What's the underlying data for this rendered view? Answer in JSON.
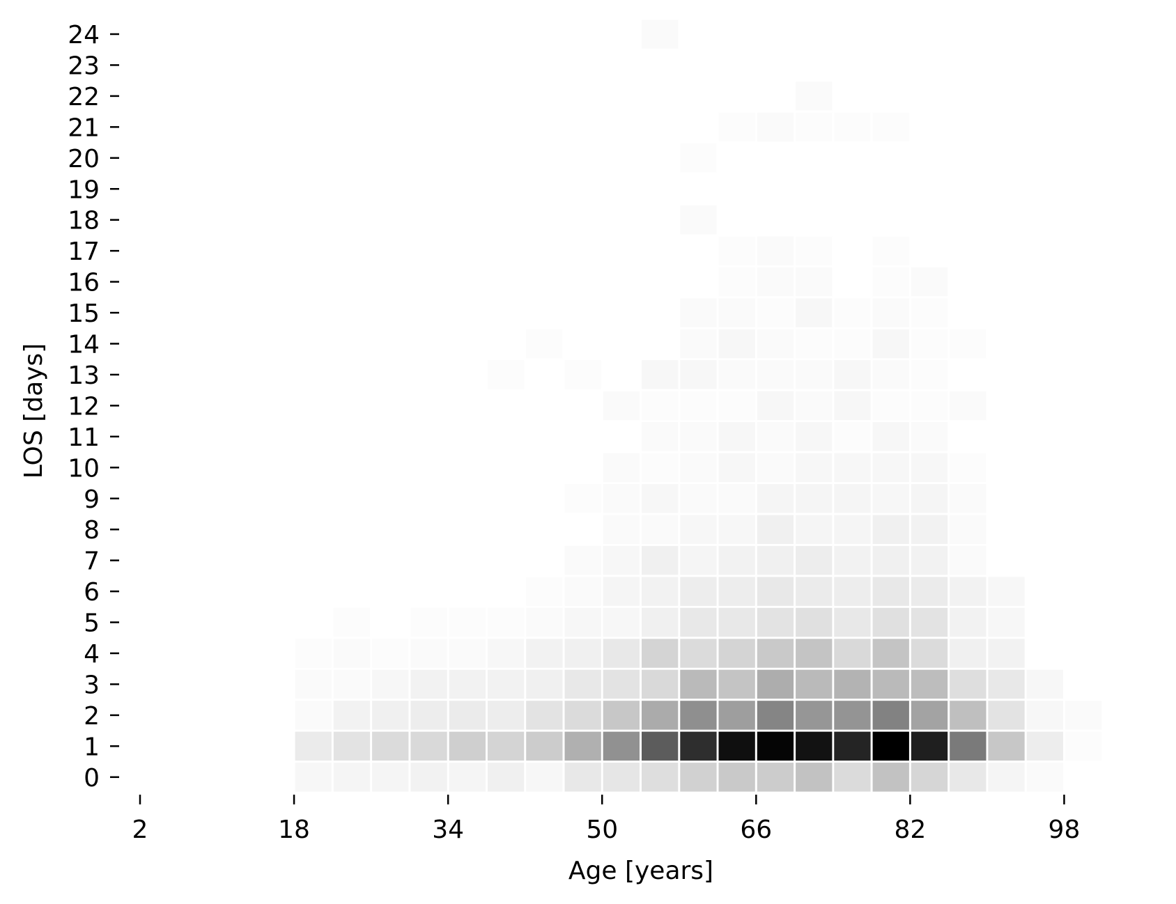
{
  "chart_data": {
    "type": "heatmap",
    "title": "",
    "xlabel": "Age [years]",
    "ylabel": "LOS [days]",
    "x_ticks": [
      2,
      18,
      34,
      50,
      66,
      82,
      98
    ],
    "y_ticks": [
      0,
      1,
      2,
      3,
      4,
      5,
      6,
      7,
      8,
      9,
      10,
      11,
      12,
      13,
      14,
      15,
      16,
      17,
      18,
      19,
      20,
      21,
      22,
      23,
      24
    ],
    "x_range": [
      2,
      100
    ],
    "y_range": [
      0,
      24
    ],
    "bin_width_years": 4,
    "colormap": "Greys",
    "cell_edge_color": "#ffffff",
    "grid": false,
    "legend": "none",
    "age_bins": [
      18,
      22,
      26,
      30,
      34,
      38,
      42,
      46,
      50,
      54,
      58,
      62,
      66,
      70,
      74,
      78,
      82,
      86,
      90,
      94,
      98
    ],
    "intensity_by_los": [
      {
        "los": 0,
        "values": [
          0.03,
          0.04,
          0.04,
          0.05,
          0.04,
          0.06,
          0.03,
          0.09,
          0.1,
          0.13,
          0.18,
          0.21,
          0.2,
          0.24,
          0.14,
          0.24,
          0.16,
          0.09,
          0.04,
          0.02,
          0.0
        ]
      },
      {
        "los": 1,
        "values": [
          0.08,
          0.11,
          0.14,
          0.15,
          0.19,
          0.17,
          0.2,
          0.31,
          0.43,
          0.64,
          0.82,
          0.94,
          0.98,
          0.93,
          0.86,
          1.0,
          0.88,
          0.52,
          0.22,
          0.07,
          0.01
        ]
      },
      {
        "los": 2,
        "values": [
          0.02,
          0.05,
          0.06,
          0.07,
          0.08,
          0.07,
          0.11,
          0.14,
          0.22,
          0.33,
          0.44,
          0.38,
          0.48,
          0.41,
          0.42,
          0.49,
          0.36,
          0.25,
          0.11,
          0.03,
          0.02
        ]
      },
      {
        "los": 3,
        "values": [
          0.02,
          0.02,
          0.03,
          0.05,
          0.05,
          0.05,
          0.06,
          0.09,
          0.11,
          0.15,
          0.27,
          0.23,
          0.32,
          0.27,
          0.3,
          0.27,
          0.26,
          0.13,
          0.09,
          0.03,
          0.0
        ]
      },
      {
        "los": 4,
        "values": [
          0.01,
          0.02,
          0.01,
          0.02,
          0.02,
          0.03,
          0.05,
          0.06,
          0.09,
          0.17,
          0.14,
          0.17,
          0.21,
          0.23,
          0.15,
          0.23,
          0.14,
          0.06,
          0.05,
          0.0,
          0.0
        ]
      },
      {
        "los": 5,
        "values": [
          0.0,
          0.01,
          0.0,
          0.01,
          0.01,
          0.01,
          0.02,
          0.03,
          0.03,
          0.06,
          0.09,
          0.09,
          0.11,
          0.12,
          0.09,
          0.12,
          0.11,
          0.05,
          0.03,
          0.0,
          0.0
        ]
      },
      {
        "los": 6,
        "values": [
          0.0,
          0.0,
          0.0,
          0.0,
          0.0,
          0.0,
          0.01,
          0.02,
          0.04,
          0.05,
          0.07,
          0.07,
          0.09,
          0.08,
          0.07,
          0.09,
          0.08,
          0.05,
          0.03,
          0.0,
          0.0
        ]
      },
      {
        "los": 7,
        "values": [
          0.0,
          0.0,
          0.0,
          0.0,
          0.0,
          0.0,
          0.0,
          0.02,
          0.03,
          0.06,
          0.04,
          0.05,
          0.06,
          0.07,
          0.05,
          0.06,
          0.05,
          0.02,
          0.0,
          0.0,
          0.0
        ]
      },
      {
        "los": 8,
        "values": [
          0.0,
          0.0,
          0.0,
          0.0,
          0.0,
          0.0,
          0.0,
          0.0,
          0.02,
          0.02,
          0.03,
          0.03,
          0.06,
          0.04,
          0.04,
          0.06,
          0.05,
          0.02,
          0.0,
          0.0,
          0.0
        ]
      },
      {
        "los": 9,
        "values": [
          0.0,
          0.0,
          0.0,
          0.0,
          0.0,
          0.0,
          0.0,
          0.01,
          0.02,
          0.03,
          0.02,
          0.02,
          0.04,
          0.04,
          0.04,
          0.03,
          0.04,
          0.02,
          0.0,
          0.0,
          0.0
        ]
      },
      {
        "los": 10,
        "values": [
          0.0,
          0.0,
          0.0,
          0.0,
          0.0,
          0.0,
          0.0,
          0.0,
          0.02,
          0.01,
          0.02,
          0.03,
          0.02,
          0.03,
          0.03,
          0.03,
          0.03,
          0.01,
          0.0,
          0.0,
          0.0
        ]
      },
      {
        "los": 11,
        "values": [
          0.0,
          0.0,
          0.0,
          0.0,
          0.0,
          0.0,
          0.0,
          0.0,
          0.0,
          0.02,
          0.02,
          0.03,
          0.02,
          0.03,
          0.01,
          0.03,
          0.02,
          0.0,
          0.0,
          0.0,
          0.0
        ]
      },
      {
        "los": 12,
        "values": [
          0.0,
          0.0,
          0.0,
          0.0,
          0.0,
          0.0,
          0.0,
          0.0,
          0.02,
          0.01,
          0.01,
          0.01,
          0.03,
          0.02,
          0.03,
          0.01,
          0.01,
          0.02,
          0.0,
          0.0,
          0.0
        ]
      },
      {
        "los": 13,
        "values": [
          0.0,
          0.0,
          0.0,
          0.0,
          0.0,
          0.01,
          0.0,
          0.01,
          0.0,
          0.03,
          0.03,
          0.02,
          0.02,
          0.02,
          0.03,
          0.02,
          0.01,
          0.0,
          0.0,
          0.0,
          0.0
        ]
      },
      {
        "los": 14,
        "values": [
          0.0,
          0.0,
          0.0,
          0.0,
          0.0,
          0.0,
          0.01,
          0.0,
          0.0,
          0.0,
          0.02,
          0.03,
          0.02,
          0.01,
          0.01,
          0.03,
          0.01,
          0.01,
          0.0,
          0.0,
          0.0
        ]
      },
      {
        "los": 15,
        "values": [
          0.0,
          0.0,
          0.0,
          0.0,
          0.0,
          0.0,
          0.0,
          0.0,
          0.0,
          0.0,
          0.02,
          0.02,
          0.01,
          0.03,
          0.01,
          0.02,
          0.01,
          0.0,
          0.0,
          0.0,
          0.0
        ]
      },
      {
        "los": 16,
        "values": [
          0.0,
          0.0,
          0.0,
          0.0,
          0.0,
          0.0,
          0.0,
          0.0,
          0.0,
          0.0,
          0.0,
          0.01,
          0.02,
          0.02,
          0.0,
          0.01,
          0.02,
          0.0,
          0.0,
          0.0,
          0.0
        ]
      },
      {
        "los": 17,
        "values": [
          0.0,
          0.0,
          0.0,
          0.0,
          0.0,
          0.0,
          0.0,
          0.0,
          0.0,
          0.0,
          0.0,
          0.01,
          0.02,
          0.01,
          0.0,
          0.01,
          0.0,
          0.0,
          0.0,
          0.0,
          0.0
        ]
      },
      {
        "los": 18,
        "values": [
          0.0,
          0.0,
          0.0,
          0.0,
          0.0,
          0.0,
          0.0,
          0.0,
          0.0,
          0.0,
          0.02,
          0.0,
          0.0,
          0.0,
          0.0,
          0.0,
          0.0,
          0.0,
          0.0,
          0.0,
          0.0
        ]
      },
      {
        "los": 19,
        "values": [
          0.0,
          0.0,
          0.0,
          0.0,
          0.0,
          0.0,
          0.0,
          0.0,
          0.0,
          0.0,
          0.0,
          0.0,
          0.0,
          0.0,
          0.0,
          0.0,
          0.0,
          0.0,
          0.0,
          0.0,
          0.0
        ]
      },
      {
        "los": 20,
        "values": [
          0.0,
          0.0,
          0.0,
          0.0,
          0.0,
          0.0,
          0.0,
          0.0,
          0.0,
          0.0,
          0.01,
          0.0,
          0.0,
          0.0,
          0.0,
          0.0,
          0.0,
          0.0,
          0.0,
          0.0,
          0.0
        ]
      },
      {
        "los": 21,
        "values": [
          0.0,
          0.0,
          0.0,
          0.0,
          0.0,
          0.0,
          0.0,
          0.0,
          0.0,
          0.0,
          0.0,
          0.01,
          0.02,
          0.01,
          0.01,
          0.01,
          0.0,
          0.0,
          0.0,
          0.0,
          0.0
        ]
      },
      {
        "los": 22,
        "values": [
          0.0,
          0.0,
          0.0,
          0.0,
          0.0,
          0.0,
          0.0,
          0.0,
          0.0,
          0.0,
          0.0,
          0.0,
          0.0,
          0.02,
          0.0,
          0.0,
          0.0,
          0.0,
          0.0,
          0.0,
          0.0
        ]
      },
      {
        "los": 23,
        "values": [
          0.0,
          0.0,
          0.0,
          0.0,
          0.0,
          0.0,
          0.0,
          0.0,
          0.0,
          0.0,
          0.0,
          0.0,
          0.0,
          0.0,
          0.0,
          0.0,
          0.0,
          0.0,
          0.0,
          0.0,
          0.0
        ]
      },
      {
        "los": 24,
        "values": [
          0.0,
          0.0,
          0.0,
          0.0,
          0.0,
          0.0,
          0.0,
          0.0,
          0.0,
          0.02,
          0.0,
          0.0,
          0.0,
          0.0,
          0.0,
          0.0,
          0.0,
          0.0,
          0.0,
          0.0,
          0.0
        ]
      }
    ]
  }
}
